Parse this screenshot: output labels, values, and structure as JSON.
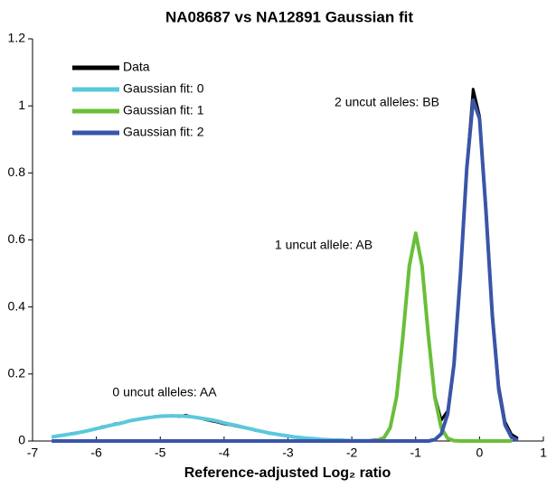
{
  "chart_data": {
    "type": "line",
    "title": "NA08687 vs NA12891 Gaussian fit",
    "xlabel": "Reference-adjusted Log₂ ratio",
    "x": [
      -6.7,
      -6.6,
      -6.5,
      -6.4,
      -6.3,
      -6.2,
      -6.1,
      -6.0,
      -5.9,
      -5.8,
      -5.7,
      -5.6,
      -5.5,
      -5.4,
      -5.3,
      -5.2,
      -5.1,
      -5.0,
      -4.9,
      -4.8,
      -4.7,
      -4.6,
      -4.5,
      -4.4,
      -4.3,
      -4.2,
      -4.1,
      -4.0,
      -3.9,
      -3.8,
      -3.7,
      -3.6,
      -3.5,
      -3.4,
      -3.3,
      -3.2,
      -3.1,
      -3.0,
      -2.9,
      -2.8,
      -2.7,
      -2.6,
      -2.5,
      -2.4,
      -2.3,
      -2.2,
      -2.1,
      -2.0,
      -1.9,
      -1.8,
      -1.7,
      -1.6,
      -1.5,
      -1.4,
      -1.3,
      -1.2,
      -1.1,
      -1.0,
      -0.9,
      -0.8,
      -0.7,
      -0.6,
      -0.5,
      -0.4,
      -0.3,
      -0.2,
      -0.1,
      0.0,
      0.1,
      0.2,
      0.3,
      0.4,
      0.5,
      0.6
    ],
    "series": [
      {
        "name": "Data",
        "color": "#000000",
        "values": [
          0.012,
          0.016,
          0.017,
          0.022,
          0.025,
          0.027,
          0.033,
          0.036,
          0.043,
          0.045,
          0.052,
          0.053,
          0.06,
          0.062,
          0.067,
          0.07,
          0.071,
          0.075,
          0.074,
          0.076,
          0.073,
          0.077,
          0.072,
          0.07,
          0.064,
          0.06,
          0.056,
          0.051,
          0.048,
          0.044,
          0.04,
          0.036,
          0.031,
          0.029,
          0.023,
          0.021,
          0.017,
          0.016,
          0.011,
          0.01,
          0.008,
          0.006,
          0.005,
          0.004,
          0.003,
          0.002,
          0.002,
          0.001,
          0.001,
          0.001,
          0.002,
          0.003,
          0.01,
          0.041,
          0.133,
          0.315,
          0.525,
          0.618,
          0.525,
          0.313,
          0.136,
          0.062,
          0.09,
          0.229,
          0.497,
          0.818,
          1.05,
          0.97,
          0.7,
          0.385,
          0.165,
          0.058,
          0.02,
          0.008
        ]
      },
      {
        "name": "Gaussian fit: 0",
        "color": "#5bc8dc",
        "values": [
          0.012,
          0.015,
          0.018,
          0.021,
          0.024,
          0.028,
          0.032,
          0.037,
          0.041,
          0.046,
          0.05,
          0.054,
          0.059,
          0.063,
          0.066,
          0.069,
          0.072,
          0.074,
          0.075,
          0.075,
          0.075,
          0.074,
          0.072,
          0.069,
          0.066,
          0.063,
          0.059,
          0.054,
          0.05,
          0.046,
          0.041,
          0.037,
          0.032,
          0.028,
          0.024,
          0.021,
          0.018,
          0.015,
          0.012,
          0.01,
          0.008,
          0.007,
          0.005,
          0.004,
          0.003,
          0.003,
          0.002,
          0.001,
          0.001,
          0.001,
          0.001,
          null,
          null,
          null,
          null,
          null,
          null,
          null,
          null,
          null,
          null,
          null,
          null,
          null,
          null,
          null,
          null,
          null,
          null,
          null,
          null,
          null,
          null,
          null
        ]
      },
      {
        "name": "Gaussian fit: 1",
        "color": "#6abf3a",
        "values": [
          null,
          null,
          null,
          null,
          null,
          null,
          null,
          null,
          null,
          null,
          null,
          null,
          null,
          null,
          null,
          null,
          null,
          null,
          null,
          null,
          null,
          null,
          null,
          null,
          null,
          null,
          null,
          null,
          null,
          null,
          null,
          null,
          null,
          null,
          null,
          null,
          null,
          null,
          null,
          null,
          null,
          null,
          null,
          null,
          null,
          null,
          null,
          null,
          null,
          null,
          null,
          0.001,
          0.008,
          0.039,
          0.131,
          0.311,
          0.522,
          0.62,
          0.522,
          0.311,
          0.131,
          0.039,
          0.008,
          0.001,
          0,
          0,
          0,
          0,
          0,
          0,
          0,
          0,
          0,
          null
        ]
      },
      {
        "name": "Gaussian fit: 2",
        "color": "#3a55a8",
        "values": [
          0,
          0,
          0,
          0,
          0,
          0,
          0,
          0,
          0,
          0,
          0,
          0,
          0,
          0,
          0,
          0,
          0,
          0,
          0,
          0,
          0,
          0,
          0,
          0,
          0,
          0,
          0,
          0,
          0,
          0,
          0,
          0,
          0,
          0,
          0,
          0,
          0,
          0,
          0,
          0,
          0,
          0,
          0,
          0,
          0,
          0,
          0,
          0,
          0,
          0,
          0,
          0,
          0,
          0,
          0,
          0,
          0,
          0,
          0,
          0,
          0.004,
          0.021,
          0.08,
          0.228,
          0.495,
          0.815,
          1.017,
          0.962,
          0.69,
          0.375,
          0.154,
          0.048,
          0.011,
          0.002
        ]
      }
    ],
    "annotations": [
      "2 uncut alleles: BB",
      "1 uncut allele: AB",
      "0 uncut alleles: AA"
    ],
    "xlim": [
      -7,
      1
    ],
    "xticks": [
      -7,
      -6,
      -5,
      -4,
      -3,
      -2,
      -1,
      0,
      1
    ],
    "ylim": [
      0,
      1.2
    ],
    "yticks": [
      0,
      0.2,
      0.4,
      0.6,
      0.8,
      1,
      1.2
    ],
    "legend": "upper-left"
  }
}
